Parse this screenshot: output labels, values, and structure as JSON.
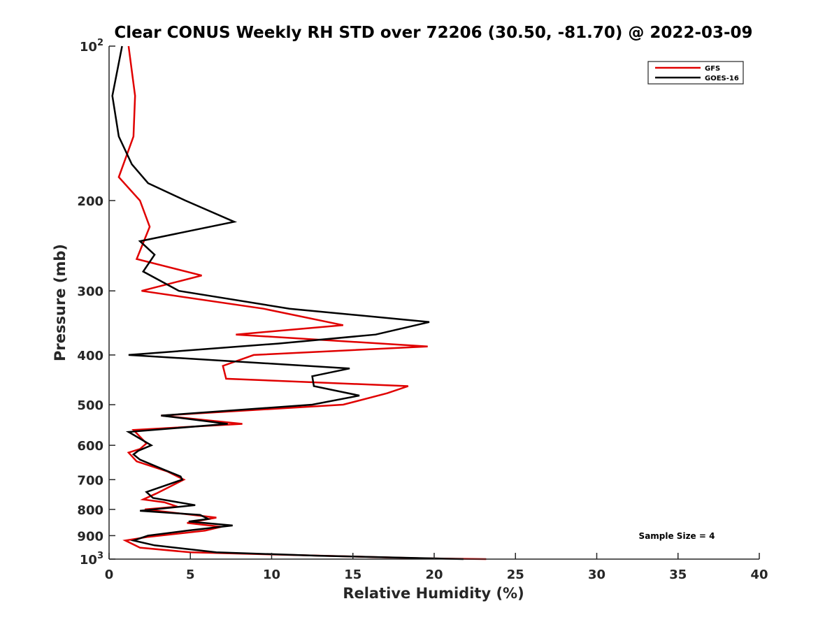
{
  "chart_data": {
    "type": "line",
    "title": "Clear CONUS Weekly RH STD over 72206 (30.50, -81.70) @ 2022-03-09",
    "xlabel": "Relative Humidity (%)",
    "ylabel": "Pressure (mb)",
    "xlim": [
      0,
      40
    ],
    "ylim": [
      100,
      1000
    ],
    "y_scale": "log",
    "y_reversed": true,
    "x_ticks": [
      0,
      5,
      10,
      15,
      20,
      25,
      30,
      35,
      40
    ],
    "x_tick_labels": [
      "0",
      "5",
      "10",
      "15",
      "20",
      "25",
      "30",
      "35",
      "40"
    ],
    "y_ticks": [
      100,
      200,
      300,
      400,
      500,
      600,
      700,
      800,
      900,
      1000
    ],
    "y_tick_labels": [
      "10^2",
      "200",
      "300",
      "400",
      "500",
      "600",
      "700",
      "800",
      "900",
      "10^3"
    ],
    "grid": false,
    "legend_position": "top-right",
    "annotation": "Sample Size = 4",
    "series": [
      {
        "name": "GFS",
        "color": "#e00000",
        "points": [
          [
            1.2,
            100
          ],
          [
            1.6,
            125
          ],
          [
            1.5,
            150
          ],
          [
            0.6,
            180
          ],
          [
            1.9,
            200
          ],
          [
            2.5,
            225
          ],
          [
            1.7,
            260
          ],
          [
            5.7,
            280
          ],
          [
            2.0,
            300
          ],
          [
            9.5,
            325
          ],
          [
            14.4,
            350
          ],
          [
            7.8,
            365
          ],
          [
            19.6,
            385
          ],
          [
            8.9,
            400
          ],
          [
            7.0,
            420
          ],
          [
            7.2,
            445
          ],
          [
            18.4,
            460
          ],
          [
            17.1,
            475
          ],
          [
            14.4,
            500
          ],
          [
            3.2,
            525
          ],
          [
            8.2,
            545
          ],
          [
            1.5,
            560
          ],
          [
            2.3,
            595
          ],
          [
            1.9,
            610
          ],
          [
            1.2,
            620
          ],
          [
            1.7,
            645
          ],
          [
            3.6,
            675
          ],
          [
            4.6,
            700
          ],
          [
            2.9,
            745
          ],
          [
            2.1,
            765
          ],
          [
            3.4,
            775
          ],
          [
            4.2,
            790
          ],
          [
            2.2,
            800
          ],
          [
            6.6,
            830
          ],
          [
            4.8,
            850
          ],
          [
            6.9,
            865
          ],
          [
            5.9,
            880
          ],
          [
            2.4,
            905
          ],
          [
            1.0,
            920
          ],
          [
            1.9,
            950
          ],
          [
            5.0,
            970
          ],
          [
            19.5,
            997
          ],
          [
            23.2,
            1000
          ]
        ]
      },
      {
        "name": "GOES-16",
        "color": "#000000",
        "points": [
          [
            0.8,
            100
          ],
          [
            0.2,
            125
          ],
          [
            0.6,
            150
          ],
          [
            1.4,
            170
          ],
          [
            2.4,
            185
          ],
          [
            4.7,
            200
          ],
          [
            7.7,
            220
          ],
          [
            1.9,
            240
          ],
          [
            2.8,
            255
          ],
          [
            2.1,
            275
          ],
          [
            4.3,
            300
          ],
          [
            11.1,
            325
          ],
          [
            19.7,
            345
          ],
          [
            16.4,
            365
          ],
          [
            10.4,
            380
          ],
          [
            1.2,
            400
          ],
          [
            14.8,
            425
          ],
          [
            12.5,
            440
          ],
          [
            12.6,
            460
          ],
          [
            15.4,
            480
          ],
          [
            12.5,
            500
          ],
          [
            3.2,
            525
          ],
          [
            7.3,
            545
          ],
          [
            1.2,
            565
          ],
          [
            2.6,
            600
          ],
          [
            1.8,
            615
          ],
          [
            1.5,
            625
          ],
          [
            1.9,
            640
          ],
          [
            3.4,
            670
          ],
          [
            4.4,
            690
          ],
          [
            4.5,
            700
          ],
          [
            2.3,
            740
          ],
          [
            2.7,
            760
          ],
          [
            5.3,
            785
          ],
          [
            1.9,
            805
          ],
          [
            5.6,
            820
          ],
          [
            6.1,
            835
          ],
          [
            4.9,
            845
          ],
          [
            7.6,
            860
          ],
          [
            4.8,
            880
          ],
          [
            2.4,
            900
          ],
          [
            1.5,
            920
          ],
          [
            2.8,
            940
          ],
          [
            6.6,
            970
          ],
          [
            13.0,
            985
          ],
          [
            21.8,
            1000
          ]
        ]
      }
    ]
  }
}
